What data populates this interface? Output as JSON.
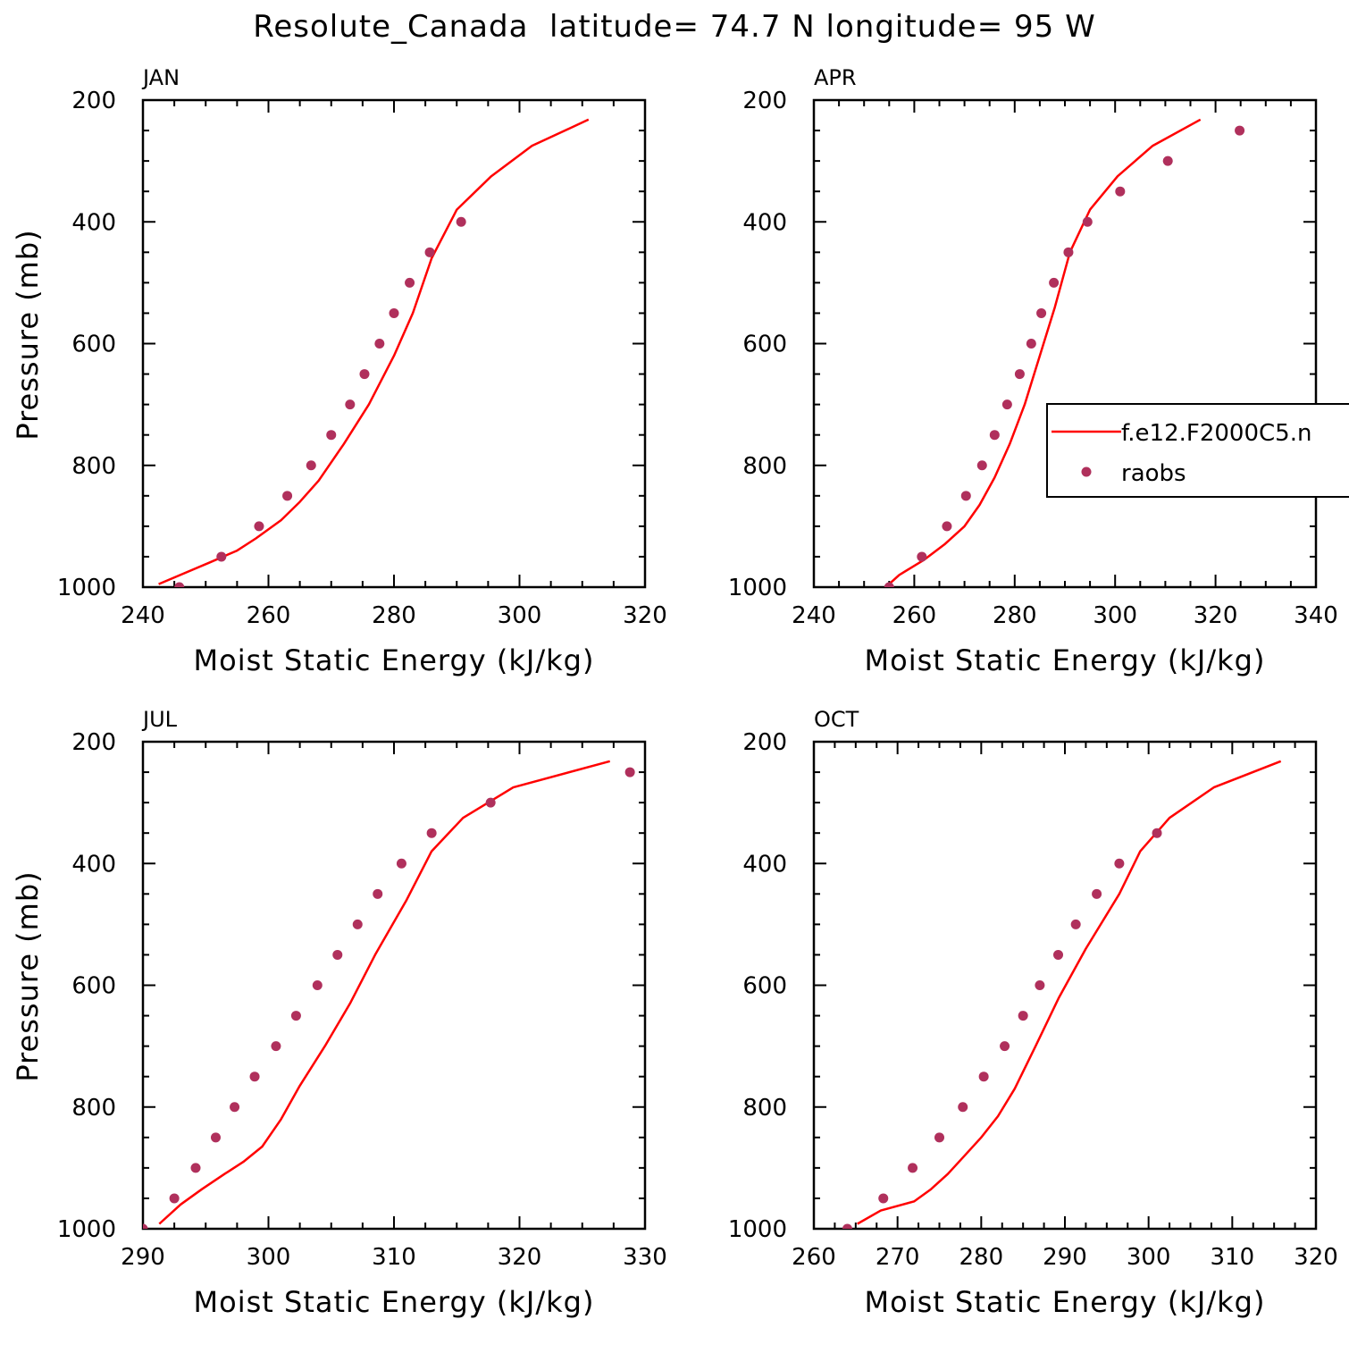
{
  "figure": {
    "title": "Resolute_Canada  latitude= 74.7 N longitude= 95 W"
  },
  "legend": {
    "placement": "right of APR panel",
    "model_label": "f.e12.F2000C5.n",
    "obs_label": "raobs"
  },
  "colors": {
    "model": "#ff0000",
    "obs": "#b0305c",
    "axes": "#000000"
  },
  "chart_data": [
    {
      "type": "line",
      "panel_label": "JAN",
      "xlabel": "Moist Static Energy (kJ/kg)",
      "ylabel": "Pressure (mb)",
      "xlim": [
        240,
        320
      ],
      "xticks": [
        240,
        260,
        280,
        300,
        320
      ],
      "ylim": [
        1000,
        200
      ],
      "yticks": [
        200,
        400,
        600,
        800,
        1000
      ],
      "series": [
        {
          "kind": "line",
          "x": [
            242.5,
            250.5,
            255,
            258,
            262,
            265,
            268,
            272,
            276,
            280,
            283,
            286,
            290,
            295.5,
            302,
            311
          ],
          "y": [
            995,
            960,
            940,
            920,
            890,
            860,
            825,
            765,
            700,
            620,
            550,
            460,
            380,
            325,
            275,
            232
          ]
        },
        {
          "kind": "scatter",
          "x": [
            245.8,
            252.5,
            258.5,
            263,
            266.8,
            270,
            273,
            275.3,
            277.7,
            280,
            282.5,
            285.7,
            290.7
          ],
          "y": [
            1000,
            950,
            900,
            850,
            800,
            750,
            700,
            650,
            600,
            550,
            500,
            450,
            400
          ]
        }
      ]
    },
    {
      "type": "line",
      "panel_label": "APR",
      "xlabel": "Moist Static Energy (kJ/kg)",
      "ylabel": "",
      "xlim": [
        240,
        340
      ],
      "xticks": [
        240,
        260,
        280,
        300,
        320,
        340
      ],
      "ylim": [
        1000,
        200
      ],
      "yticks": [
        200,
        400,
        600,
        800,
        1000
      ],
      "series": [
        {
          "kind": "line",
          "x": [
            255,
            257,
            262,
            266,
            270,
            273,
            276,
            279,
            282,
            285,
            288,
            291,
            295,
            300.5,
            307.5,
            317
          ],
          "y": [
            995,
            980,
            955,
            930,
            900,
            865,
            820,
            765,
            700,
            620,
            540,
            450,
            380,
            325,
            275,
            232
          ]
        },
        {
          "kind": "scatter",
          "x": [
            255,
            261.5,
            266.5,
            270.3,
            273.5,
            276,
            278.5,
            281,
            283.3,
            285.3,
            287.8,
            290.7,
            294.5,
            301,
            310.5,
            324.8
          ],
          "y": [
            1000,
            950,
            900,
            850,
            800,
            750,
            700,
            650,
            600,
            550,
            500,
            450,
            400,
            350,
            300,
            250
          ]
        }
      ]
    },
    {
      "type": "line",
      "panel_label": "JUL",
      "xlabel": "Moist Static Energy (kJ/kg)",
      "ylabel": "Pressure (mb)",
      "xlim": [
        290,
        330
      ],
      "xticks": [
        290,
        300,
        310,
        320,
        330
      ],
      "ylim": [
        1000,
        200
      ],
      "yticks": [
        200,
        400,
        600,
        800,
        1000
      ],
      "series": [
        {
          "kind": "line",
          "x": [
            291.3,
            293,
            294.7,
            296.5,
            298,
            299.5,
            301,
            302.5,
            304.5,
            306.5,
            308.5,
            311,
            313,
            315.5,
            319.5,
            327.2
          ],
          "y": [
            992,
            960,
            935,
            910,
            890,
            865,
            820,
            765,
            700,
            630,
            550,
            460,
            380,
            325,
            275,
            232
          ]
        },
        {
          "kind": "scatter",
          "x": [
            290,
            292.5,
            294.2,
            295.8,
            297.3,
            298.9,
            300.6,
            302.2,
            303.9,
            305.5,
            307.1,
            308.7,
            310.6,
            313,
            317.7,
            328.8
          ],
          "y": [
            1000,
            950,
            900,
            850,
            800,
            750,
            700,
            650,
            600,
            550,
            500,
            450,
            400,
            350,
            300,
            250
          ]
        }
      ]
    },
    {
      "type": "line",
      "panel_label": "OCT",
      "xlabel": "Moist Static Energy (kJ/kg)",
      "ylabel": "",
      "xlim": [
        260,
        320
      ],
      "xticks": [
        260,
        270,
        280,
        290,
        300,
        310,
        320
      ],
      "ylim": [
        1000,
        200
      ],
      "yticks": [
        200,
        400,
        600,
        800,
        1000
      ],
      "series": [
        {
          "kind": "line",
          "x": [
            265.2,
            268,
            272,
            274,
            276,
            278,
            280,
            282,
            284,
            286.5,
            289.3,
            292.5,
            296.5,
            299,
            302.5,
            307.8,
            315.8
          ],
          "y": [
            992,
            970,
            955,
            935,
            910,
            880,
            850,
            815,
            770,
            700,
            620,
            540,
            450,
            380,
            325,
            275,
            232
          ]
        },
        {
          "kind": "scatter",
          "x": [
            264,
            268.3,
            271.8,
            275,
            277.8,
            280.3,
            282.8,
            285,
            287,
            289.2,
            291.3,
            293.8,
            296.5,
            301
          ],
          "y": [
            1000,
            950,
            900,
            850,
            800,
            750,
            700,
            650,
            600,
            550,
            500,
            450,
            400,
            350
          ]
        }
      ]
    }
  ]
}
